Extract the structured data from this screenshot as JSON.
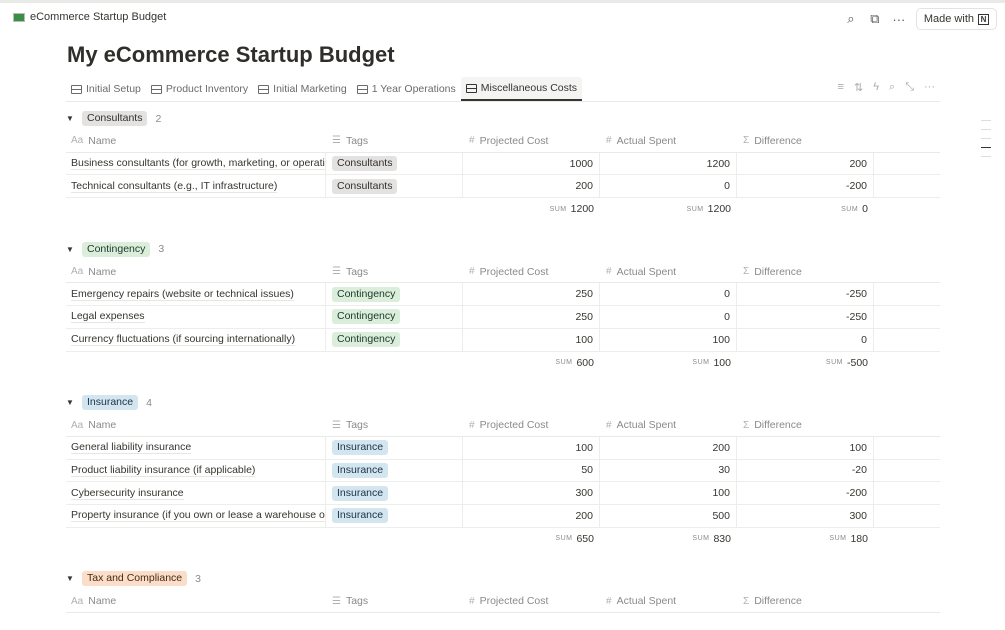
{
  "topbar": {
    "breadcrumb": "eCommerce Startup Budget",
    "made_with": "Made with"
  },
  "page": {
    "title": "My eCommerce Startup Budget"
  },
  "tabs": [
    {
      "label": "Initial Setup"
    },
    {
      "label": "Product Inventory"
    },
    {
      "label": "Initial Marketing"
    },
    {
      "label": "1 Year Operations"
    },
    {
      "label": "Miscellaneous Costs",
      "active": true
    }
  ],
  "columns": {
    "name": "Name",
    "tags": "Tags",
    "projected": "Projected Cost",
    "actual": "Actual Spent",
    "difference": "Difference",
    "name_icon": "Aa",
    "tags_icon": "☰",
    "num_icon": "#",
    "formula_icon": "Σ"
  },
  "sum_label": "SUM",
  "groups": [
    {
      "name": "Consultants",
      "count": "2",
      "bg": "#e3e2e0",
      "fg": "#32302c",
      "rows": [
        {
          "name": "Business consultants (for growth, marketing, or operations)",
          "tag": "Consultants",
          "projected": "1000",
          "actual": "1200",
          "difference": "200"
        },
        {
          "name": "Technical consultants (e.g., IT infrastructure)",
          "tag": "Consultants",
          "projected": "200",
          "actual": "0",
          "difference": "-200"
        }
      ],
      "sums": {
        "projected": "1200",
        "actual": "1200",
        "difference": "0"
      }
    },
    {
      "name": "Contingency",
      "count": "3",
      "bg": "#dbeddb",
      "fg": "#1c3829",
      "rows": [
        {
          "name": "Emergency repairs (website or technical issues)",
          "tag": "Contingency",
          "projected": "250",
          "actual": "0",
          "difference": "-250"
        },
        {
          "name": "Legal expenses",
          "tag": "Contingency",
          "projected": "250",
          "actual": "0",
          "difference": "-250"
        },
        {
          "name": "Currency fluctuations (if sourcing internationally)",
          "tag": "Contingency",
          "projected": "100",
          "actual": "100",
          "difference": "0"
        }
      ],
      "sums": {
        "projected": "600",
        "actual": "100",
        "difference": "-500"
      }
    },
    {
      "name": "Insurance",
      "count": "4",
      "bg": "#d3e5ef",
      "fg": "#183347",
      "rows": [
        {
          "name": "General liability insurance",
          "tag": "Insurance",
          "projected": "100",
          "actual": "200",
          "difference": "100"
        },
        {
          "name": "Product liability insurance (if applicable)",
          "tag": "Insurance",
          "projected": "50",
          "actual": "30",
          "difference": "-20"
        },
        {
          "name": "Cybersecurity insurance",
          "tag": "Insurance",
          "projected": "300",
          "actual": "100",
          "difference": "-200"
        },
        {
          "name": "Property insurance (if you own or lease a warehouse or office)",
          "tag": "Insurance",
          "projected": "200",
          "actual": "500",
          "difference": "300"
        }
      ],
      "sums": {
        "projected": "650",
        "actual": "830",
        "difference": "180"
      }
    },
    {
      "name": "Tax and Compliance",
      "count": "3",
      "bg": "#fadec9",
      "fg": "#49290e",
      "rows": [],
      "sums": null
    }
  ]
}
